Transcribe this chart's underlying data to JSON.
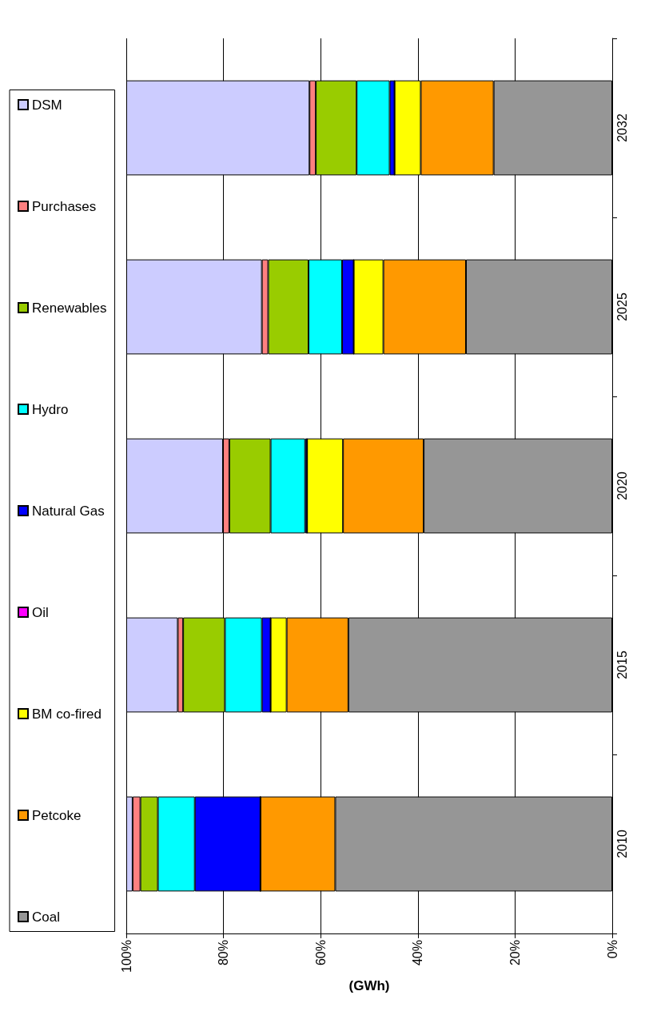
{
  "chart_data": {
    "type": "bar",
    "stacked": true,
    "orientation": "horizontal",
    "xlabel": "(GWh)",
    "categories": [
      "2032",
      "2025",
      "2020",
      "2015",
      "2010"
    ],
    "xlim": [
      100,
      0
    ],
    "xticks": [
      {
        "value": 100,
        "label": "100%"
      },
      {
        "value": 80,
        "label": "80%"
      },
      {
        "value": 60,
        "label": "60%"
      },
      {
        "value": 40,
        "label": "40%"
      },
      {
        "value": 20,
        "label": "20%"
      },
      {
        "value": 0,
        "label": "0%"
      }
    ],
    "grid": "x",
    "legend": "left",
    "series": [
      {
        "name": "Coal",
        "color": "#969696",
        "values": [
          24.4,
          30.1,
          38.8,
          54.3,
          57.0
        ]
      },
      {
        "name": "Petcoke",
        "color": "#ff9900",
        "values": [
          15.0,
          17.0,
          16.6,
          12.7,
          15.4
        ]
      },
      {
        "name": "BM co-fired",
        "color": "#ffff00",
        "values": [
          5.4,
          6.1,
          7.4,
          3.3,
          0
        ]
      },
      {
        "name": "Oil",
        "color": "#ff00ff",
        "values": [
          0,
          0,
          0,
          0,
          0
        ]
      },
      {
        "name": "Natural Gas",
        "color": "#0000ff",
        "values": [
          1.0,
          2.4,
          0.4,
          1.8,
          13.5
        ]
      },
      {
        "name": "Hydro",
        "color": "#00ffff",
        "values": [
          6.8,
          6.9,
          7.1,
          7.6,
          7.6
        ]
      },
      {
        "name": "Renewables",
        "color": "#99cc00",
        "values": [
          8.4,
          8.3,
          8.5,
          8.6,
          3.6
        ]
      },
      {
        "name": "Purchases",
        "color": "#ff8080",
        "values": [
          1.3,
          1.3,
          1.3,
          1.1,
          1.6
        ]
      },
      {
        "name": "DSM",
        "color": "#ccccff",
        "values": [
          37.7,
          27.9,
          19.9,
          10.6,
          1.3
        ]
      }
    ]
  }
}
